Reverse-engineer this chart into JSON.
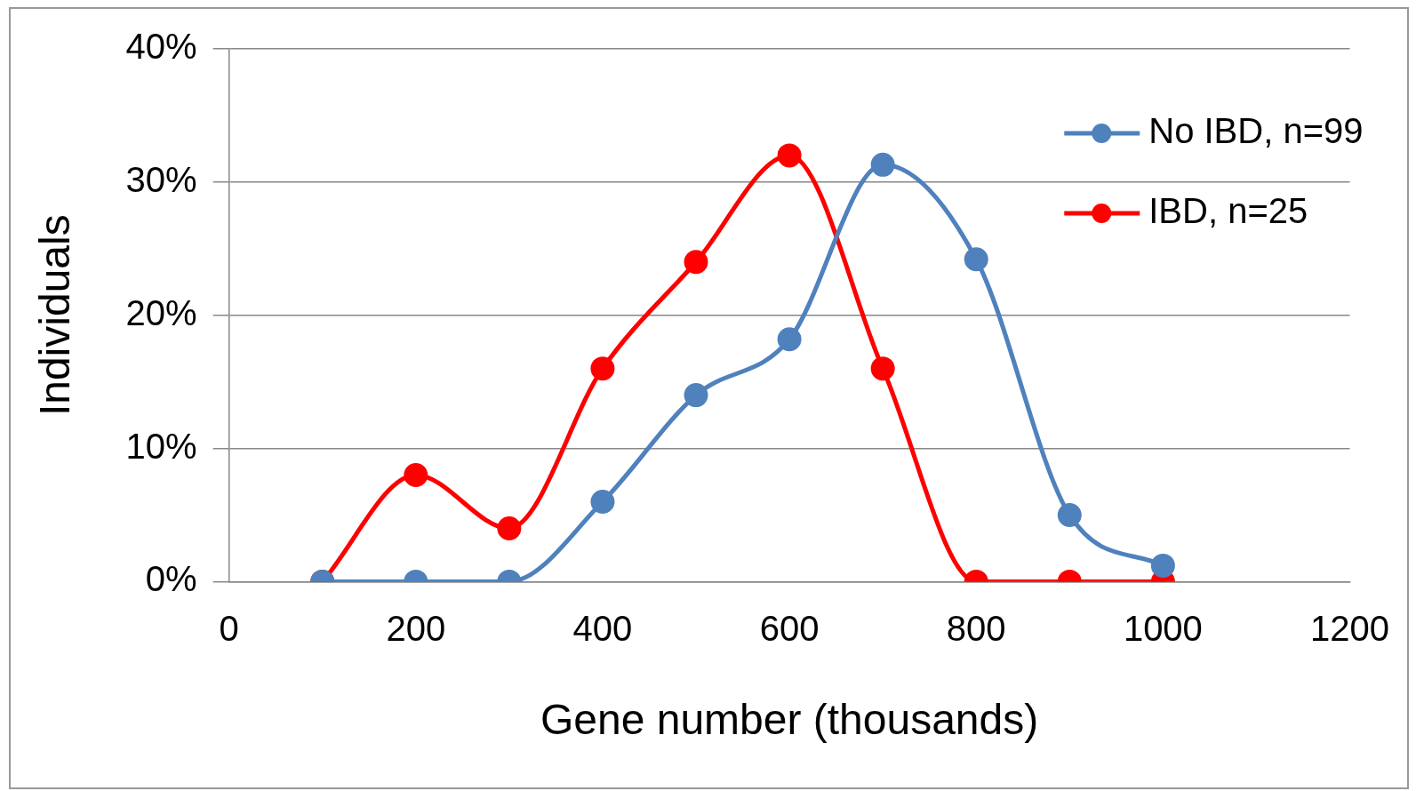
{
  "chart_data": {
    "type": "line",
    "xlabel": "Gene number (thousands)",
    "ylabel": "Individuals",
    "xlim": [
      0,
      1200
    ],
    "xticks": [
      0,
      200,
      400,
      600,
      800,
      1000,
      1200
    ],
    "ylim": [
      0,
      40
    ],
    "yticks": [
      {
        "value": 0,
        "label": "0%"
      },
      {
        "value": 10,
        "label": "10%"
      },
      {
        "value": 20,
        "label": "20%"
      },
      {
        "value": 30,
        "label": "30%"
      },
      {
        "value": 40,
        "label": "40%"
      }
    ],
    "x": [
      100,
      200,
      300,
      400,
      500,
      600,
      700,
      800,
      900,
      1000
    ],
    "series": [
      {
        "name": "No IBD, n=99",
        "color": "#4f81bd",
        "values": [
          0,
          0,
          0,
          6,
          14,
          18.2,
          31.3,
          24.2,
          5,
          1.2
        ]
      },
      {
        "name": "IBD, n=25",
        "color": "#ff0000",
        "values": [
          0,
          8,
          4,
          16,
          24,
          32,
          16,
          0,
          0,
          0
        ]
      }
    ],
    "grid": "y",
    "legend": "top right",
    "marker": "circle",
    "line_style": "solid"
  }
}
